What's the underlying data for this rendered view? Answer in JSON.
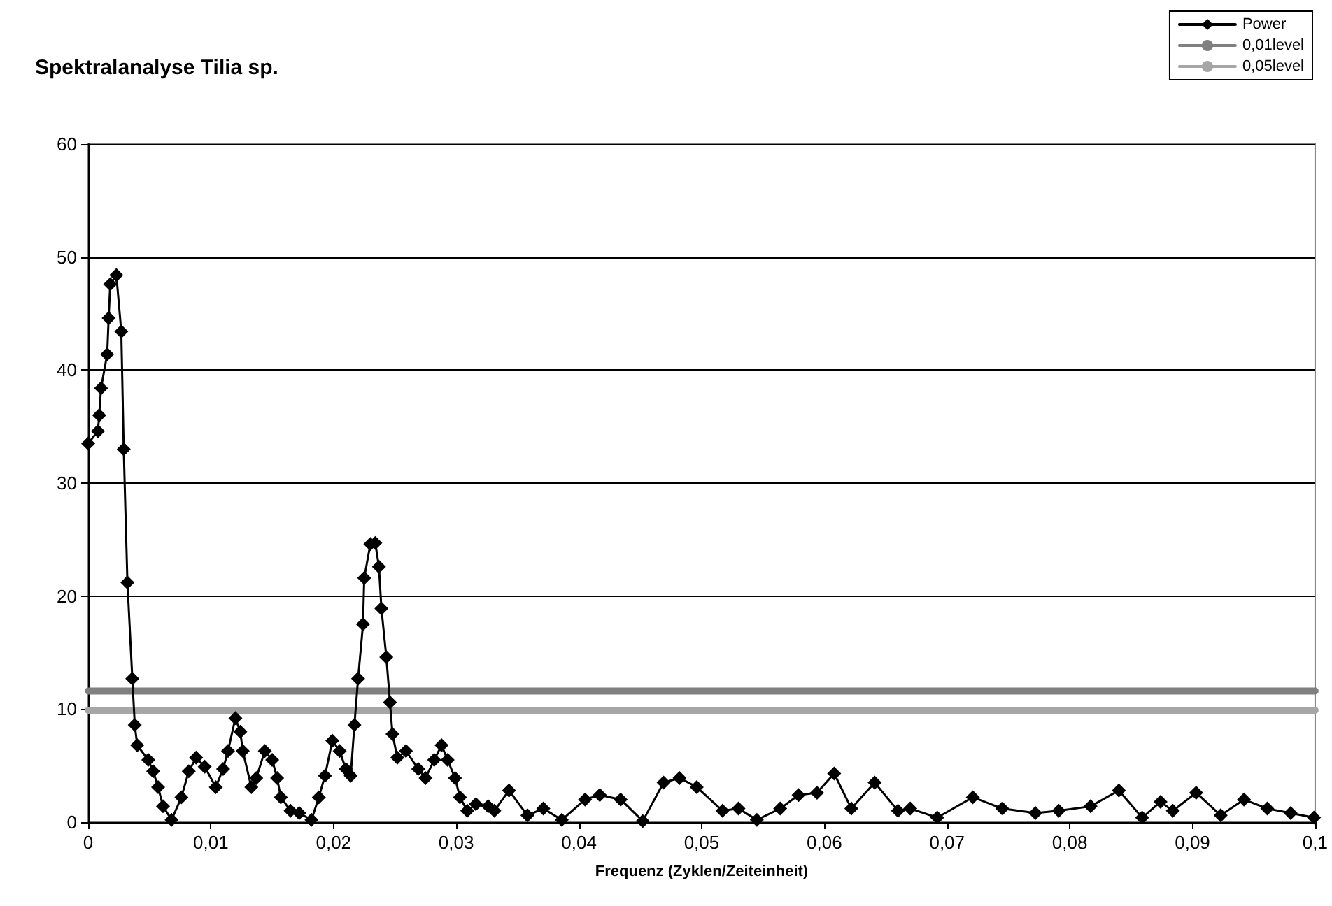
{
  "chart_data": {
    "type": "line",
    "title": "Spektralanalyse Tilia sp.",
    "xlabel": "Frequenz (Zyklen/Zeiteinheit)",
    "xlim": [
      0,
      0.1
    ],
    "xticks": [
      0,
      {
        "value": 0.01,
        "label": "0,01"
      },
      {
        "value": 0.02,
        "label": "0,02"
      },
      {
        "value": 0.03,
        "label": "0,03"
      },
      {
        "value": 0.04,
        "label": "0,04"
      },
      {
        "value": 0.05,
        "label": "0,05"
      },
      {
        "value": 0.06,
        "label": "0,06"
      },
      {
        "value": 0.07,
        "label": "0,07"
      },
      {
        "value": 0.08,
        "label": "0,08"
      },
      {
        "value": 0.09,
        "label": "0,09"
      },
      {
        "value": 0.1,
        "label": "0,1"
      }
    ],
    "ylim": [
      0,
      60
    ],
    "yticks": [
      0,
      10,
      20,
      30,
      40,
      50,
      60
    ],
    "grid": "y",
    "legend": "top right",
    "series": [
      {
        "name": "Power",
        "color": "#000000",
        "marker": "diamond",
        "line_style": "solid",
        "x": [
          0,
          0.0008,
          0.0009,
          0.00105,
          0.00155,
          0.00167,
          0.0018,
          0.0023,
          0.0027,
          0.0029,
          0.0032,
          0.0036,
          0.0038,
          0.004,
          0.0049,
          0.0053,
          0.0057,
          0.0061,
          0.0068,
          0.0076,
          0.0082,
          0.0088,
          0.0095,
          0.0104,
          0.011,
          0.0114,
          0.012,
          0.0124,
          0.0126,
          0.0133,
          0.0137,
          0.0144,
          0.015,
          0.0154,
          0.0157,
          0.0165,
          0.0172,
          0.0182,
          0.0188,
          0.0193,
          0.0199,
          0.0205,
          0.021,
          0.0214,
          0.0217,
          0.022,
          0.0224,
          0.0225,
          0.023,
          0.0234,
          0.0237,
          0.0239,
          0.0243,
          0.0246,
          0.0248,
          0.0252,
          0.0259,
          0.0269,
          0.0275,
          0.0282,
          0.0288,
          0.0293,
          0.0299,
          0.0303,
          0.0309,
          0.0316,
          0.0326,
          0.0331,
          0.0343,
          0.0358,
          0.0371,
          0.0386,
          0.0405,
          0.0417,
          0.0434,
          0.0452,
          0.0469,
          0.0482,
          0.0496,
          0.0517,
          0.053,
          0.0545,
          0.0564,
          0.0579,
          0.0594,
          0.0608,
          0.0622,
          0.0641,
          0.066,
          0.067,
          0.0692,
          0.0721,
          0.0745,
          0.0772,
          0.0791,
          0.0817,
          0.084,
          0.0859,
          0.0874,
          0.0884,
          0.0903,
          0.0923,
          0.0942,
          0.0961,
          0.098,
          0.0999
        ],
        "values": [
          33.5,
          34.6,
          36.0,
          38.4,
          41.4,
          44.6,
          47.6,
          48.4,
          43.4,
          33.0,
          21.2,
          12.7,
          8.6,
          6.8,
          5.5,
          4.5,
          3.1,
          1.4,
          0.2,
          2.2,
          4.5,
          5.7,
          4.9,
          3.1,
          4.7,
          6.3,
          9.2,
          8.0,
          6.3,
          3.1,
          3.9,
          6.3,
          5.5,
          3.9,
          2.2,
          1.0,
          0.8,
          0.2,
          2.2,
          4.1,
          7.2,
          6.3,
          4.7,
          4.1,
          8.6,
          12.7,
          17.5,
          21.6,
          24.6,
          24.7,
          22.6,
          18.9,
          14.6,
          10.6,
          7.8,
          5.7,
          6.3,
          4.7,
          3.9,
          5.5,
          6.8,
          5.5,
          3.9,
          2.2,
          1.0,
          1.6,
          1.4,
          1.0,
          2.8,
          0.6,
          1.2,
          0.2,
          2.0,
          2.4,
          2.0,
          0.1,
          3.5,
          3.9,
          3.1,
          1.0,
          1.2,
          0.2,
          1.2,
          2.4,
          2.6,
          4.3,
          1.2,
          3.5,
          1.0,
          1.2,
          0.4,
          2.2,
          1.2,
          0.8,
          1.0,
          1.4,
          2.8,
          0.4,
          1.8,
          1.0,
          2.6,
          0.6,
          2.0,
          1.2,
          0.8,
          0.4
        ]
      },
      {
        "name": "0,01level",
        "color": "#808080",
        "marker": "none",
        "line_style": "solid",
        "x": [
          0,
          0.1
        ],
        "values": [
          11.6,
          11.6
        ]
      },
      {
        "name": "0,05level",
        "color": "#a6a6a6",
        "marker": "none",
        "line_style": "solid",
        "x": [
          0,
          0.1
        ],
        "values": [
          9.9,
          9.9
        ]
      }
    ]
  }
}
